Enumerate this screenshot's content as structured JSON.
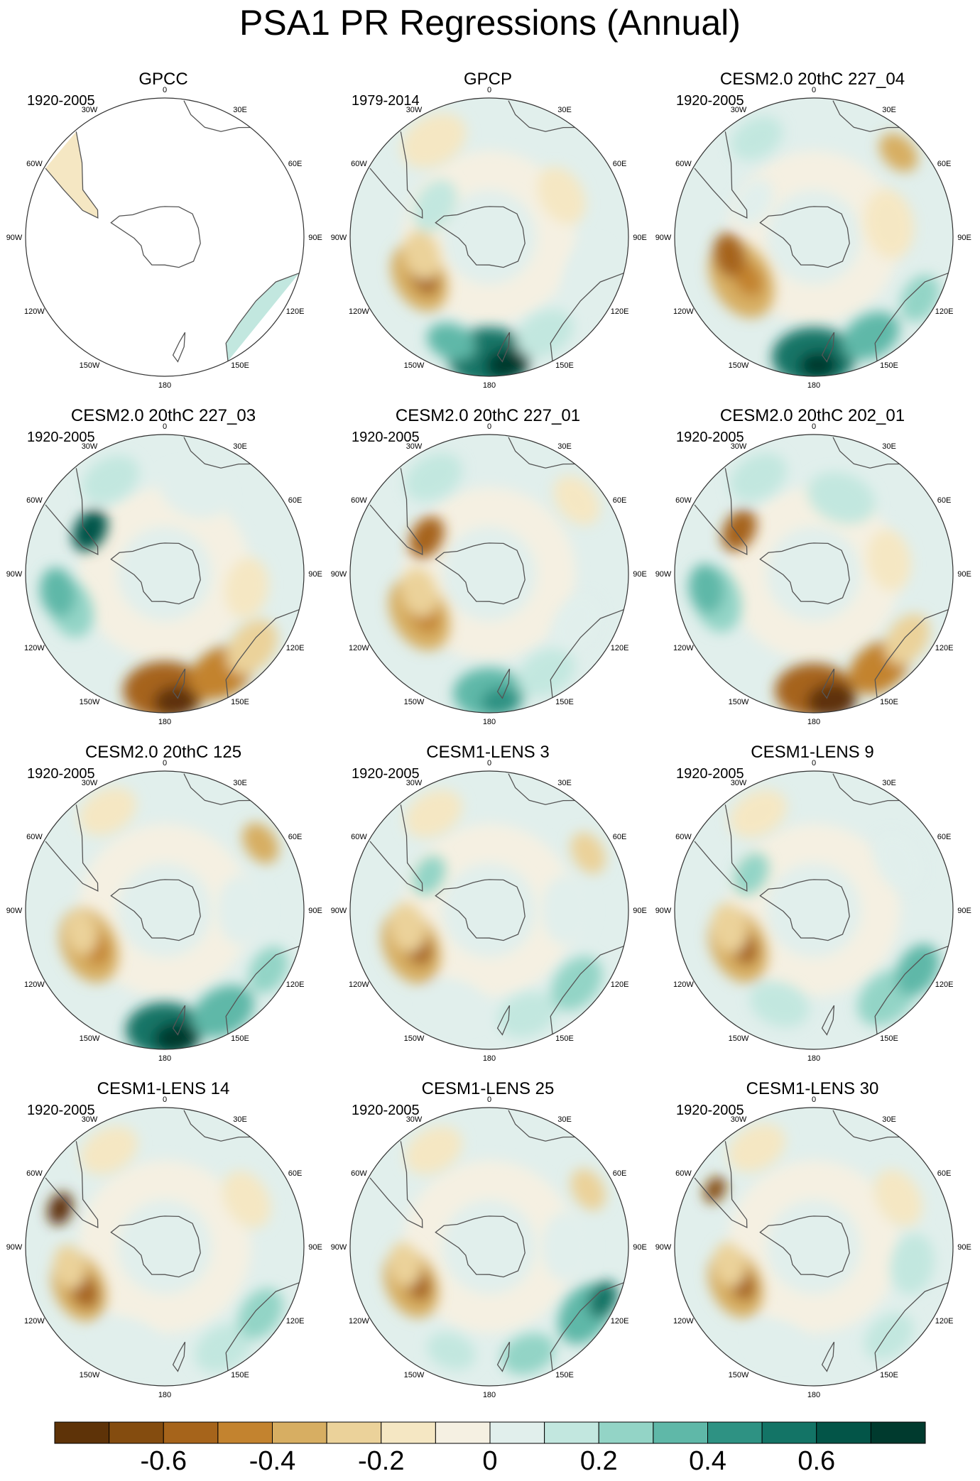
{
  "title": "PSA1 PR Regressions (Annual)",
  "projection": "south polar stereographic",
  "longitude_labels": [
    "0",
    "30E",
    "60E",
    "90E",
    "120E",
    "150E",
    "180",
    "150W",
    "120W",
    "90W",
    "60W",
    "30W"
  ],
  "panels": [
    {
      "title": "GPCC",
      "period": "1920-2005",
      "data_coverage": "land only",
      "regression_pattern": "positive eastern Australia / New Zealand; weak negative southern South America"
    },
    {
      "title": "GPCP",
      "period": "1979-2014",
      "data_coverage": "global",
      "regression_pattern": "strong positive Pacific south of New Zealand near 180; negative band west of Chile near 120W"
    },
    {
      "title": "CESM2.0 20thC 227_04",
      "period": "1920-2005",
      "data_coverage": "global",
      "regression_pattern": "strong positive near 180 and Tasman Sea; negative band west of South America"
    },
    {
      "title": "CESM2.0 20thC 227_03",
      "period": "1920-2005",
      "data_coverage": "global",
      "regression_pattern": "strong negative near 180 / south of New Zealand; positive band near 120W"
    },
    {
      "title": "CESM2.0 20thC 227_01",
      "period": "1920-2005",
      "data_coverage": "global",
      "regression_pattern": "positive south of New Zealand; negative band west of Chile"
    },
    {
      "title": "CESM2.0 20thC 202_01",
      "period": "1920-2005",
      "data_coverage": "global",
      "regression_pattern": "strong negative near 180; positive band near 100W"
    },
    {
      "title": "CESM2.0 20thC 125",
      "period": "1920-2005",
      "data_coverage": "global",
      "regression_pattern": "strong positive near 180; negative band west of South America"
    },
    {
      "title": "CESM1-LENS 3",
      "period": "1920-2005",
      "data_coverage": "global",
      "regression_pattern": "weak positive south of Australia; negative band west of Chile"
    },
    {
      "title": "CESM1-LENS 9",
      "period": "1920-2005",
      "data_coverage": "global",
      "regression_pattern": "positive south of Australia; negative band west of Chile"
    },
    {
      "title": "CESM1-LENS 14",
      "period": "1920-2005",
      "data_coverage": "global",
      "regression_pattern": "weak positive near 150E; negative band near 120W"
    },
    {
      "title": "CESM1-LENS 25",
      "period": "1920-2005",
      "data_coverage": "global",
      "regression_pattern": "positive near 120E-150E; negative band west of Chile"
    },
    {
      "title": "CESM1-LENS 30",
      "period": "1920-2005",
      "data_coverage": "global",
      "regression_pattern": "weak positive near 150E; negative band west of Chile"
    }
  ],
  "colorbar": {
    "colors": [
      "#5e3308",
      "#844c0f",
      "#a6641b",
      "#c3832f",
      "#d7ae62",
      "#ebd29a",
      "#f5e7c3",
      "#f5f0e2",
      "#e1efec",
      "#c2e7df",
      "#93d4c6",
      "#5fb8a8",
      "#2e9283",
      "#137466",
      "#035548",
      "#003a2e"
    ],
    "labels": [
      "-0.6",
      "-0.4",
      "-0.2",
      "0",
      "0.2",
      "0.4",
      "0.6"
    ]
  }
}
